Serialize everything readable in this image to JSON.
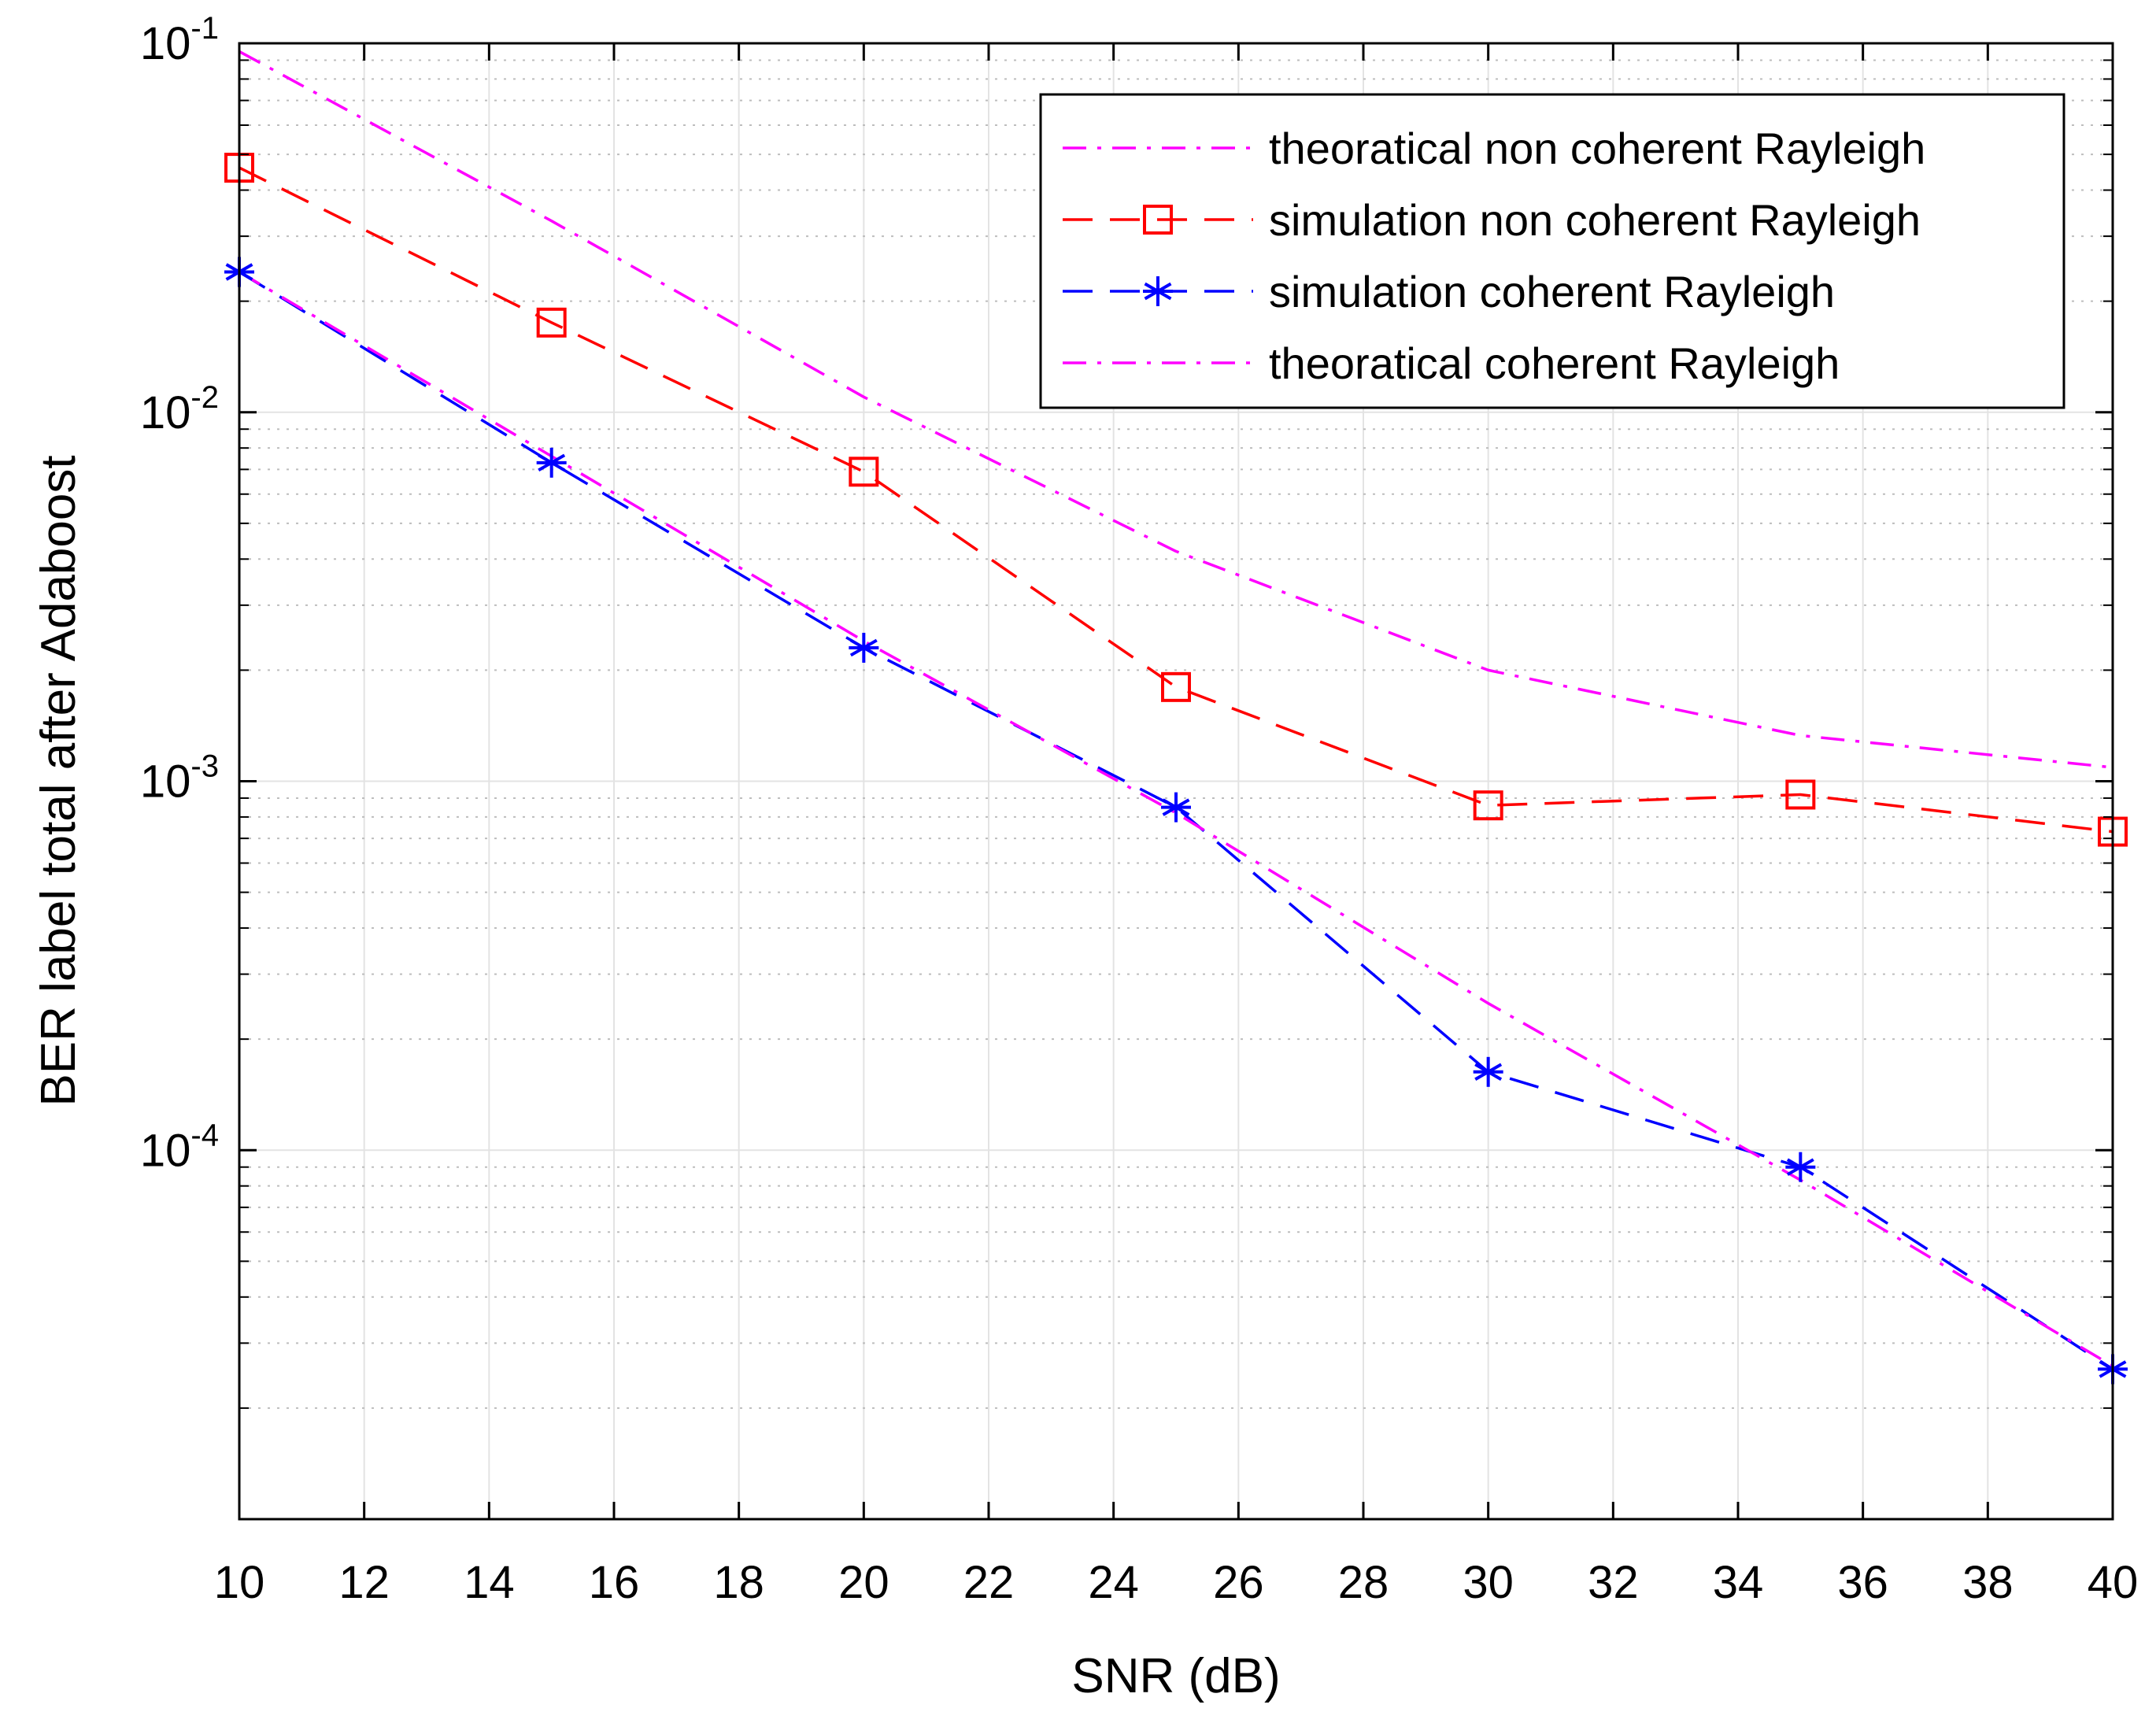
{
  "chart_data": {
    "type": "line",
    "title": "",
    "xlabel": "SNR (dB)",
    "ylabel": "BER label total after Adaboost",
    "xlim": [
      10,
      40
    ],
    "ylim": [
      1e-05,
      0.1
    ],
    "yscale": "log",
    "grid": true,
    "minor_grid": true,
    "legend_position": "top-right",
    "xticks": [
      10,
      12,
      14,
      16,
      18,
      20,
      22,
      24,
      26,
      28,
      30,
      32,
      34,
      36,
      38,
      40
    ],
    "xtick_labels": [
      "10",
      "12",
      "14",
      "16",
      "18",
      "20",
      "22",
      "24",
      "26",
      "28",
      "30",
      "32",
      "34",
      "36",
      "38",
      "40"
    ],
    "yticks": [
      {
        "value": 0.1,
        "base": "10",
        "exp": "-1"
      },
      {
        "value": 0.01,
        "base": "10",
        "exp": "-2"
      },
      {
        "value": 0.001,
        "base": "10",
        "exp": "-3"
      },
      {
        "value": 0.0001,
        "base": "10",
        "exp": "-4"
      }
    ],
    "series": [
      {
        "name": "theoratical non coherent Rayleigh",
        "color": "#ff00ff",
        "dash": "dashdot",
        "marker": "none",
        "x": [
          10,
          15,
          20,
          25,
          30,
          35,
          40
        ],
        "y": [
          0.095,
          0.033,
          0.011,
          0.0042,
          0.002,
          0.00133,
          0.00109
        ]
      },
      {
        "name": "simulation non coherent Rayleigh",
        "color": "#ff0000",
        "dash": "dashed",
        "marker": "square",
        "x": [
          10,
          15,
          20,
          25,
          30,
          35,
          40
        ],
        "y": [
          0.046,
          0.0175,
          0.0069,
          0.0018,
          0.00086,
          0.00092,
          0.00073
        ]
      },
      {
        "name": "simulation coherent Rayleigh",
        "color": "#0000ff",
        "dash": "dashed",
        "marker": "asterisk",
        "x": [
          10,
          15,
          20,
          25,
          30,
          35,
          40
        ],
        "y": [
          0.024,
          0.0073,
          0.0023,
          0.00085,
          0.000163,
          9e-05,
          2.55e-05
        ]
      },
      {
        "name": "theoratical coherent Rayleigh",
        "color": "#ff00ff",
        "dash": "dashdot",
        "marker": "none",
        "x": [
          10,
          15,
          20,
          25,
          30,
          35,
          40
        ],
        "y": [
          0.024,
          0.0076,
          0.0024,
          0.00082,
          0.00025,
          8.3e-05,
          2.6e-05
        ]
      }
    ]
  }
}
